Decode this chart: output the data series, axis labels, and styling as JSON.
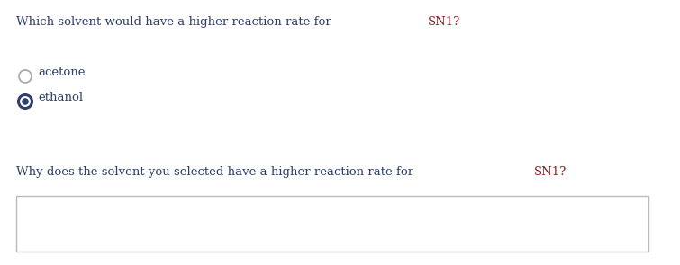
{
  "question1_prefix": "Which solvent would have a higher reaction rate for ",
  "question1_highlight": "SN1?",
  "option1": "acetone",
  "option2": "ethanol",
  "option1_selected": false,
  "option2_selected": true,
  "question2_prefix": "Why does the solvent you selected have a higher reaction rate for ",
  "question2_highlight": "SN1?",
  "text_color_dark": "#2e3f6e",
  "text_color_highlight": "#8b1a1a",
  "background_color": "#ffffff",
  "radio_unselected_edgecolor": "#aaaaaa",
  "radio_selected_edgecolor": "#2e3f6e",
  "radio_selected_fill": "#2e3f6e",
  "box_border_color": "#bbbbbb",
  "font_size": 9.5
}
